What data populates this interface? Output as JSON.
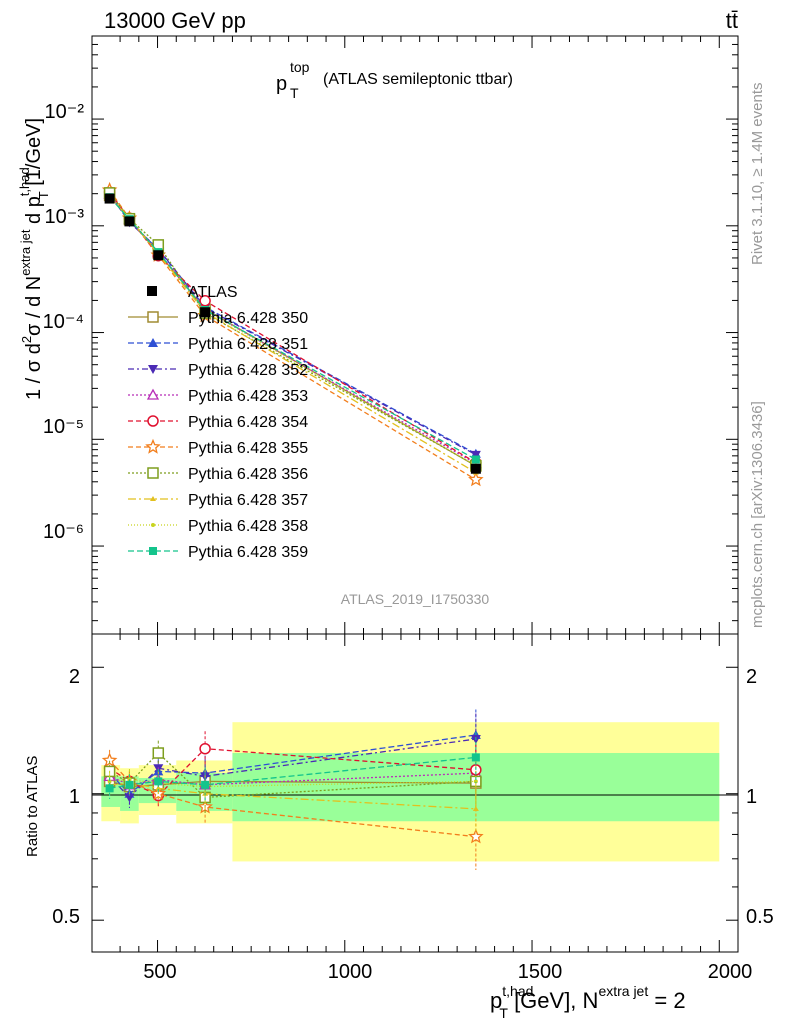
{
  "header": {
    "left": "13000 GeV pp",
    "right": "tt̄"
  },
  "plot_title": {
    "main": "p",
    "sup": "top",
    "sub": "T",
    "rest": "(ATLAS semileptonic ttbar)"
  },
  "side_labels": {
    "rivet": "Rivet 3.1.10, ≥ 1.4M events",
    "mcplots": "mcplots.cern.ch [arXiv:1306.3436]"
  },
  "watermark": "ATLAS_2019_I1750330",
  "axes": {
    "y_label_upper": "1 / σ d²σ / d N^(extra jet) d p_T^(t,had) [1/GeV]",
    "y_label_ratio": "Ratio to ATLAS",
    "x_label": "p_T^(t,had) [GeV], N^(extra jet) = 2",
    "x_ticks": [
      "500",
      "1000",
      "1500",
      "2000"
    ],
    "y_ticks_upper": [
      "10⁻²",
      "10⁻³",
      "10⁻⁴",
      "10⁻⁵",
      "10⁻⁶"
    ],
    "y_ticks_ratio": [
      "2",
      "1",
      "0.5"
    ]
  },
  "chart_data": {
    "type": "line",
    "title": "p_T^top (ATLAS semileptonic ttbar)",
    "x_scale": "linear",
    "xlim": [
      325,
      2050
    ],
    "upper": {
      "y_scale": "log",
      "ylim": [
        1.5e-07,
        0.06
      ]
    },
    "ratio": {
      "y_scale": "log",
      "ylim": [
        0.42,
        2.4
      ]
    },
    "bins": [
      [
        350,
        400
      ],
      [
        400,
        450
      ],
      [
        450,
        550
      ],
      [
        550,
        700
      ],
      [
        700,
        2000
      ]
    ],
    "x": [
      372,
      425,
      502,
      627,
      1350
    ],
    "reference": {
      "name": "ATLAS",
      "values": [
        0.0018,
        0.0011,
        0.00053,
        0.000155,
        5.3e-06
      ],
      "band_inner": [
        [
          0.93,
          1.1
        ],
        [
          0.91,
          1.1
        ],
        [
          0.95,
          1.09
        ],
        [
          0.91,
          1.12
        ],
        [
          0.86,
          1.25
        ]
      ],
      "band_outer": [
        [
          0.86,
          1.17
        ],
        [
          0.85,
          1.15
        ],
        [
          0.89,
          1.17
        ],
        [
          0.85,
          1.2
        ],
        [
          0.69,
          1.48
        ]
      ]
    },
    "series": [
      {
        "name": "Pythia 6.428 350",
        "color": "#a08c32",
        "dash": "",
        "marker": "open-square",
        "ratio": [
          1.07,
          1.04,
          1.05,
          1.07,
          1.06
        ],
        "err": [
          0.06,
          0.07,
          0.08,
          0.1,
          0.1
        ]
      },
      {
        "name": "Pythia 6.428 351",
        "color": "#2e4fd4",
        "dash": "6,3",
        "marker": "filled-triangle-up",
        "ratio": [
          1.12,
          1.0,
          1.13,
          1.12,
          1.38
        ],
        "err": [
          0.06,
          0.06,
          0.07,
          0.1,
          0.15
        ]
      },
      {
        "name": "Pythia 6.428 352",
        "color": "#4b2ab5",
        "dash": "6,3,2,3",
        "marker": "filled-triangle-down",
        "ratio": [
          1.1,
          0.98,
          1.15,
          1.1,
          1.35
        ],
        "err": [
          0.06,
          0.06,
          0.07,
          0.1,
          0.15
        ]
      },
      {
        "name": "Pythia 6.428 353",
        "color": "#b82eb8",
        "dash": "2,2",
        "marker": "open-triangle-up",
        "ratio": [
          1.1,
          1.05,
          1.08,
          1.05,
          1.12
        ],
        "err": [
          0.06,
          0.06,
          0.07,
          0.1,
          0.15
        ]
      },
      {
        "name": "Pythia 6.428 354",
        "color": "#e0102f",
        "dash": "5,3",
        "marker": "open-circle",
        "ratio": [
          1.15,
          1.07,
          0.99,
          1.28,
          1.14
        ],
        "err": [
          0.06,
          0.06,
          0.07,
          0.1,
          0.15
        ]
      },
      {
        "name": "Pythia 6.428 355",
        "color": "#f27e1c",
        "dash": "5,3",
        "marker": "open-star",
        "ratio": [
          1.2,
          1.07,
          1.0,
          0.93,
          0.79
        ],
        "err": [
          0.06,
          0.06,
          0.07,
          0.1,
          0.2
        ]
      },
      {
        "name": "Pythia 6.428 356",
        "color": "#7e9e1e",
        "dash": "2,2",
        "marker": "open-square",
        "ratio": [
          1.13,
          1.06,
          1.25,
          0.98,
          1.07
        ],
        "err": [
          0.06,
          0.06,
          0.07,
          0.1,
          0.15
        ]
      },
      {
        "name": "Pythia 6.428 357",
        "color": "#e2c01e",
        "dash": "8,3,2,3",
        "marker": "filled-small-triangle",
        "ratio": [
          1.05,
          1.06,
          1.03,
          1.0,
          0.92
        ],
        "err": [
          0.06,
          0.06,
          0.07,
          0.1,
          0.15
        ]
      },
      {
        "name": "Pythia 6.428 358",
        "color": "#c8d41e",
        "dash": "1,2",
        "marker": "filled-dot",
        "ratio": [
          1.07,
          1.08,
          1.06,
          1.04,
          1.07
        ],
        "err": [
          0.06,
          0.06,
          0.07,
          0.1,
          0.15
        ]
      },
      {
        "name": "Pythia 6.428 359",
        "color": "#14c48c",
        "dash": "6,3",
        "marker": "filled-square",
        "ratio": [
          1.03,
          1.05,
          1.07,
          1.05,
          1.22
        ],
        "err": [
          0.06,
          0.06,
          0.07,
          0.1,
          0.15
        ]
      }
    ]
  }
}
